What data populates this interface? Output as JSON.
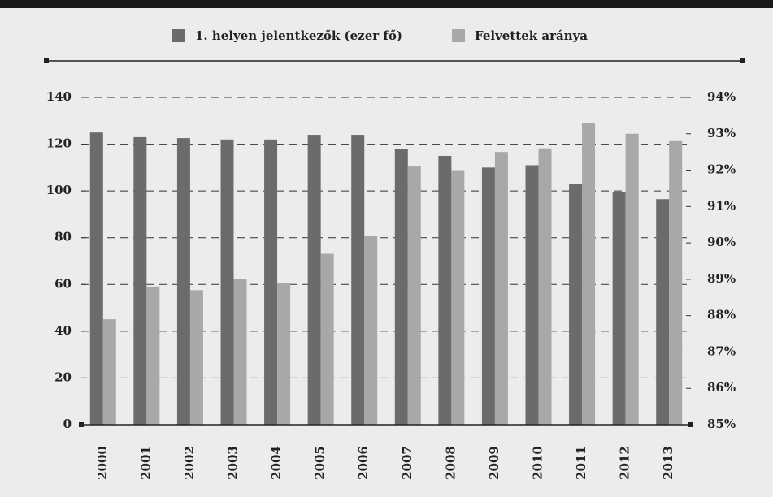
{
  "chart_data": {
    "type": "bar",
    "categories": [
      "2000",
      "2001",
      "2002",
      "2003",
      "2004",
      "2005",
      "2006",
      "2007",
      "2008",
      "2009",
      "2010",
      "2011",
      "2012",
      "2013"
    ],
    "series": [
      {
        "name": "1. helyen jelentkezők (ezer fő)",
        "color": "#6b6b6b",
        "values": [
          125,
          123,
          122.6,
          122,
          122,
          124,
          124,
          118,
          115,
          110,
          111,
          103,
          99.5,
          96.5
        ]
      },
      {
        "name": "Felvettek aránya",
        "color": "#a8a8a8",
        "axis": "y2",
        "values": [
          87.9,
          88.8,
          88.7,
          89.0,
          88.9,
          89.7,
          90.2,
          92.1,
          92.0,
          92.5,
          92.6,
          93.3,
          93.0,
          92.8
        ]
      }
    ],
    "ylim": [
      0,
      140
    ],
    "yticks": [
      0,
      20,
      40,
      60,
      80,
      100,
      120,
      140
    ],
    "y2lim": [
      85,
      94
    ],
    "y2ticks": [
      {
        "value": 85,
        "label": "85%"
      },
      {
        "value": 86,
        "label": "86%"
      },
      {
        "value": 87,
        "label": "87%"
      },
      {
        "value": 88,
        "label": "88%"
      },
      {
        "value": 89,
        "label": "89%"
      },
      {
        "value": 90,
        "label": "90%"
      },
      {
        "value": 91,
        "label": "91%"
      },
      {
        "value": 92,
        "label": "92%"
      },
      {
        "value": 93,
        "label": "93%"
      },
      {
        "value": 94,
        "label": "94%"
      }
    ],
    "grid": true
  }
}
